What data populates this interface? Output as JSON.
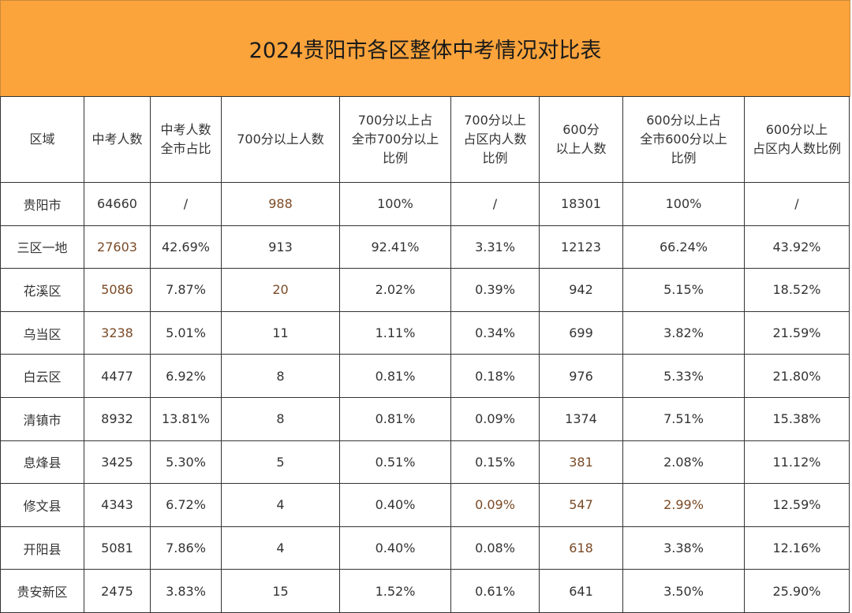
{
  "title": "2024贵阳市各区整体中考情况对比表",
  "colors": {
    "header_bg": "#FBA43C",
    "highlight_text": "#7a4a26"
  },
  "table": {
    "headers": [
      "区域",
      "中考人数",
      "中考人数\n全市占比",
      "700分以上人数",
      "700分以上占\n全市700分以上\n比例",
      "700分以上\n占区内人数\n比例",
      "600分\n以上人数",
      "600分以上占\n全市600分以上\n比例",
      "600分以上\n占区内人数比例"
    ],
    "rows": [
      [
        "贵阳市",
        "64660",
        "/",
        "988",
        "100%",
        "/",
        "18301",
        "100%",
        "/"
      ],
      [
        "三区一地",
        "27603",
        "42.69%",
        "913",
        "92.41%",
        "3.31%",
        "12123",
        "66.24%",
        "43.92%"
      ],
      [
        "花溪区",
        "5086",
        "7.87%",
        "20",
        "2.02%",
        "0.39%",
        "942",
        "5.15%",
        "18.52%"
      ],
      [
        "乌当区",
        "3238",
        "5.01%",
        "11",
        "1.11%",
        "0.34%",
        "699",
        "3.82%",
        "21.59%"
      ],
      [
        "白云区",
        "4477",
        "6.92%",
        "8",
        "0.81%",
        "0.18%",
        "976",
        "5.33%",
        "21.80%"
      ],
      [
        "清镇市",
        "8932",
        "13.81%",
        "8",
        "0.81%",
        "0.09%",
        "1374",
        "7.51%",
        "15.38%"
      ],
      [
        "息烽县",
        "3425",
        "5.30%",
        "5",
        "0.51%",
        "0.15%",
        "381",
        "2.08%",
        "11.12%"
      ],
      [
        "修文县",
        "4343",
        "6.72%",
        "4",
        "0.40%",
        "0.09%",
        "547",
        "2.99%",
        "12.59%"
      ],
      [
        "开阳县",
        "5081",
        "7.86%",
        "4",
        "0.40%",
        "0.08%",
        "618",
        "3.38%",
        "12.16%"
      ],
      [
        "贵安新区",
        "2475",
        "3.83%",
        "15",
        "1.52%",
        "0.61%",
        "641",
        "3.50%",
        "25.90%"
      ]
    ]
  }
}
